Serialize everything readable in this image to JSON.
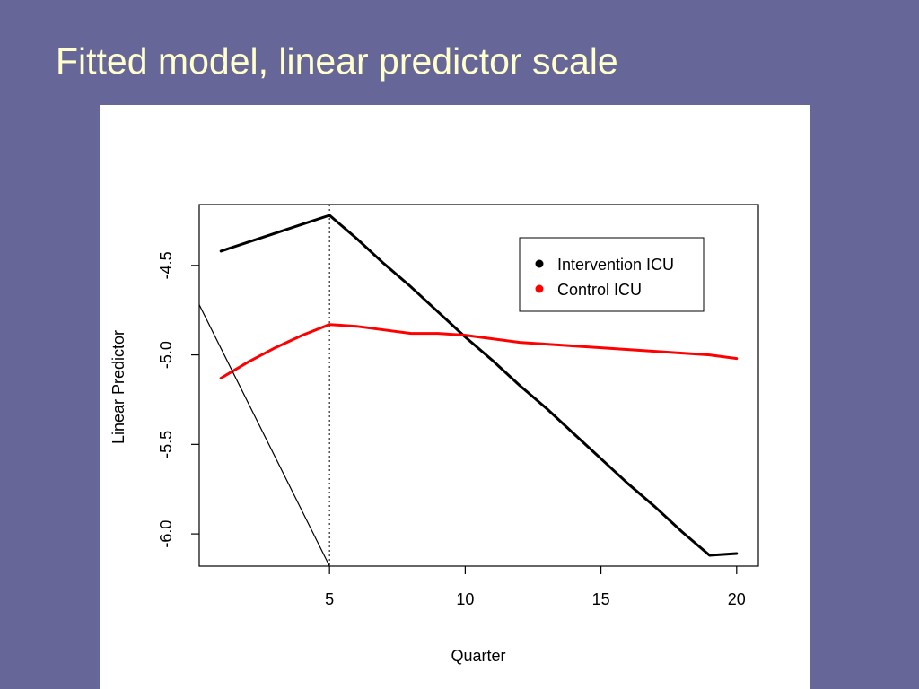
{
  "slide": {
    "title": "Fitted model, linear predictor scale"
  },
  "chart_data": {
    "type": "line",
    "title": "",
    "xlabel": "Quarter",
    "ylabel": "Linear Predictor",
    "xlim": [
      0.2,
      20.8
    ],
    "ylim": [
      -6.18,
      -4.16
    ],
    "xticks": [
      5,
      10,
      15,
      20
    ],
    "xtick_labels": [
      "5",
      "10",
      "15",
      "20"
    ],
    "yticks": [
      -6.0,
      -5.5,
      -5.0,
      -4.5
    ],
    "ytick_labels": [
      "-6.0",
      "-5.5",
      "-5.0",
      "-4.5"
    ],
    "grid": false,
    "legend": {
      "position": "top-right",
      "entries": [
        "Intervention ICU",
        "Control ICU"
      ]
    },
    "vertical_reference_line": {
      "x": 5,
      "style": "dotted"
    },
    "x": [
      1,
      2,
      3,
      4,
      5,
      6,
      7,
      8,
      9,
      10,
      11,
      12,
      13,
      14,
      15,
      16,
      17,
      18,
      19,
      20
    ],
    "series": [
      {
        "name": "Intervention ICU",
        "color": "#000000",
        "values": [
          -4.42,
          -4.37,
          -4.32,
          -4.27,
          -4.22,
          -4.35,
          -4.49,
          -4.62,
          -4.76,
          -4.9,
          -5.03,
          -5.17,
          -5.3,
          -5.44,
          -5.58,
          -5.72,
          -5.85,
          -5.99,
          -6.12,
          -6.11
        ]
      },
      {
        "name": "Control ICU",
        "color": "#ff0000",
        "values": [
          -5.13,
          -5.04,
          -4.96,
          -4.89,
          -4.83,
          -4.84,
          -4.86,
          -4.88,
          -4.88,
          -4.89,
          -4.91,
          -4.93,
          -4.94,
          -4.95,
          -4.96,
          -4.97,
          -4.98,
          -4.99,
          -5.0,
          -5.02
        ]
      },
      {
        "color": "#000000",
        "style": "thin",
        "x": [
          0.2,
          5.0
        ],
        "values": [
          -4.72,
          -6.18
        ]
      }
    ]
  }
}
